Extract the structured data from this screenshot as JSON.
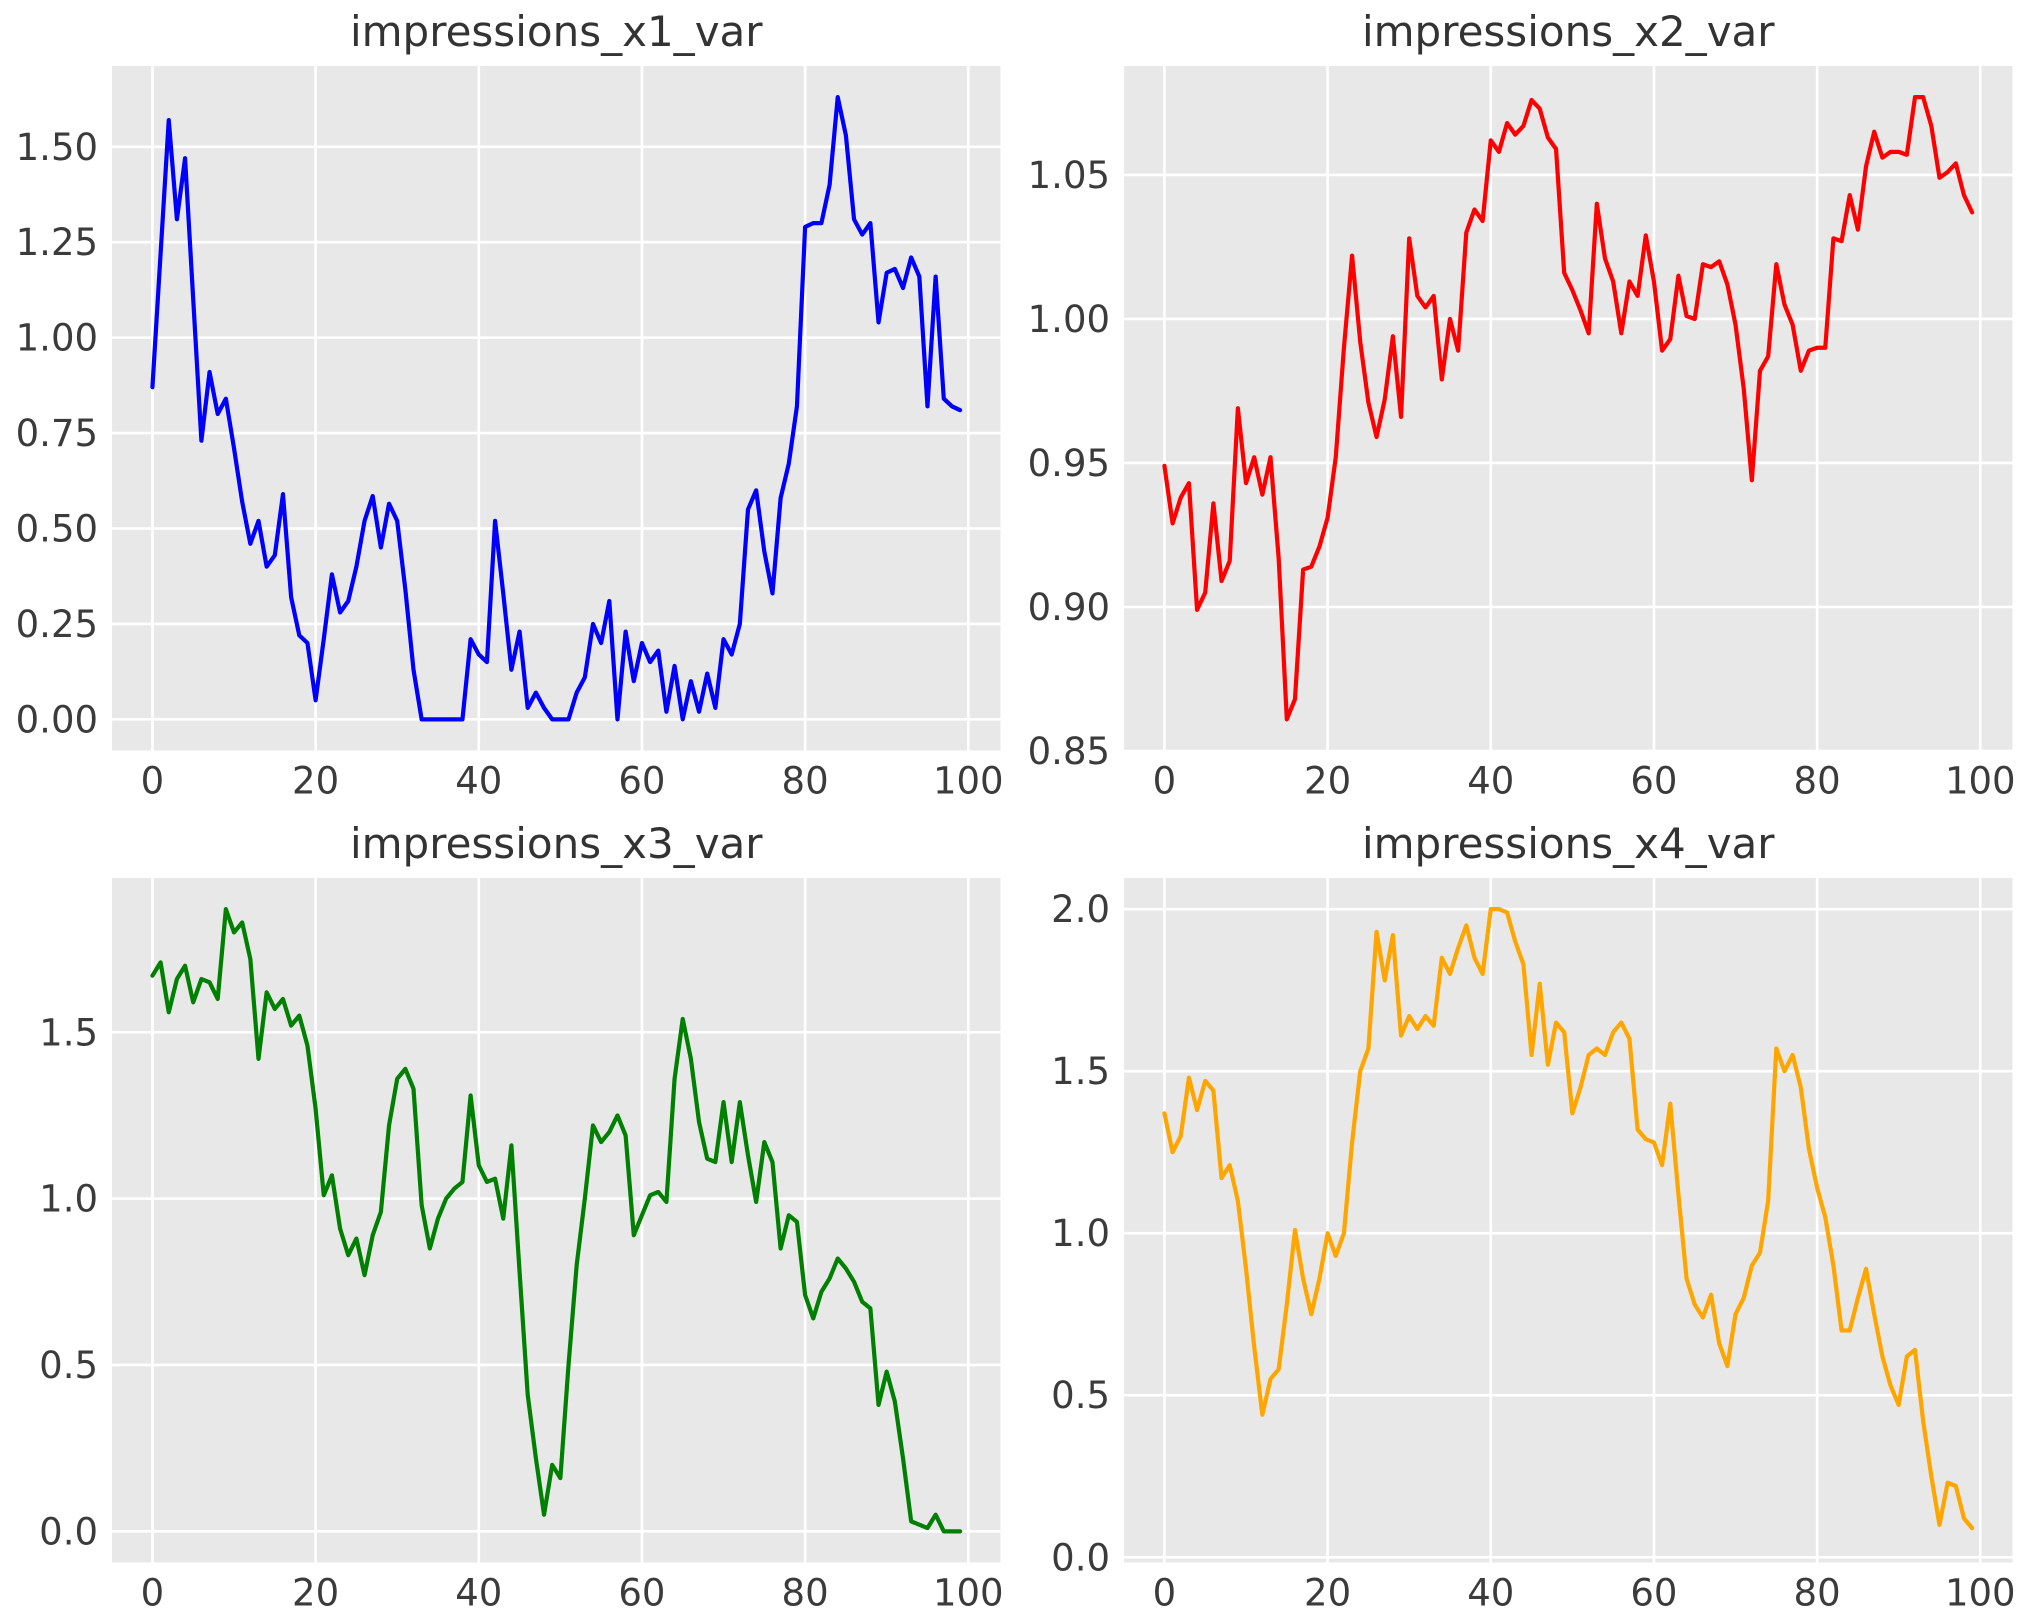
{
  "figure": {
    "background": "#ffffff",
    "plot_background": "#e8e8e8",
    "grid_color": "#ffffff",
    "tick_color": "#3b3b3b",
    "title_color": "#333333",
    "grid": true,
    "legend": "none"
  },
  "chart_data": [
    {
      "type": "line",
      "title": "impressions_x1_var",
      "line_color": "#0000ff",
      "x_start": 0,
      "x_step": 1,
      "xlim": [
        -4.95,
        103.95
      ],
      "ylim": [
        -0.0815,
        1.7115
      ],
      "x_ticks": [
        [
          0,
          "0"
        ],
        [
          20,
          "20"
        ],
        [
          40,
          "40"
        ],
        [
          60,
          "60"
        ],
        [
          80,
          "80"
        ],
        [
          100,
          "100"
        ]
      ],
      "y_ticks": [
        [
          0.0,
          "0.00"
        ],
        [
          0.25,
          "0.25"
        ],
        [
          0.5,
          "0.50"
        ],
        [
          0.75,
          "0.75"
        ],
        [
          1.0,
          "1.00"
        ],
        [
          1.25,
          "1.25"
        ],
        [
          1.5,
          "1.50"
        ]
      ],
      "values": [
        0.87,
        1.22,
        1.57,
        1.31,
        1.47,
        1.1,
        0.73,
        0.91,
        0.8,
        0.84,
        0.71,
        0.57,
        0.46,
        0.52,
        0.4,
        0.43,
        0.59,
        0.32,
        0.22,
        0.2,
        0.05,
        0.21,
        0.38,
        0.28,
        0.31,
        0.4,
        0.52,
        0.585,
        0.45,
        0.565,
        0.52,
        0.34,
        0.13,
        0.0,
        0.0,
        0.0,
        0.0,
        0.0,
        0.0,
        0.21,
        0.17,
        0.15,
        0.52,
        0.33,
        0.13,
        0.23,
        0.03,
        0.07,
        0.03,
        0.0,
        0.0,
        0.0,
        0.07,
        0.11,
        0.25,
        0.2,
        0.31,
        0.0,
        0.23,
        0.1,
        0.2,
        0.15,
        0.18,
        0.02,
        0.14,
        0.0,
        0.1,
        0.02,
        0.12,
        0.03,
        0.21,
        0.17,
        0.25,
        0.55,
        0.6,
        0.44,
        0.33,
        0.58,
        0.67,
        0.82,
        1.29,
        1.3,
        1.3,
        1.4,
        1.63,
        1.53,
        1.31,
        1.27,
        1.3,
        1.04,
        1.17,
        1.18,
        1.13,
        1.21,
        1.16,
        0.82,
        1.16,
        0.84,
        0.82,
        0.81
      ]
    },
    {
      "type": "line",
      "title": "impressions_x2_var",
      "line_color": "#ff0000",
      "x_start": 0,
      "x_step": 1,
      "xlim": [
        -4.95,
        103.95
      ],
      "ylim": [
        0.8502,
        1.0878
      ],
      "x_ticks": [
        [
          0,
          "0"
        ],
        [
          20,
          "20"
        ],
        [
          40,
          "40"
        ],
        [
          60,
          "60"
        ],
        [
          80,
          "80"
        ],
        [
          100,
          "100"
        ]
      ],
      "y_ticks": [
        [
          0.85,
          "0.85"
        ],
        [
          0.9,
          "0.90"
        ],
        [
          0.95,
          "0.95"
        ],
        [
          1.0,
          "1.00"
        ],
        [
          1.05,
          "1.05"
        ]
      ],
      "values": [
        0.949,
        0.929,
        0.938,
        0.943,
        0.899,
        0.905,
        0.936,
        0.909,
        0.916,
        0.969,
        0.943,
        0.952,
        0.939,
        0.952,
        0.917,
        0.861,
        0.868,
        0.913,
        0.914,
        0.921,
        0.931,
        0.952,
        0.99,
        1.022,
        0.992,
        0.971,
        0.959,
        0.972,
        0.994,
        0.966,
        1.028,
        1.008,
        1.004,
        1.008,
        0.979,
        1.0,
        0.989,
        1.03,
        1.038,
        1.034,
        1.062,
        1.058,
        1.068,
        1.064,
        1.067,
        1.076,
        1.073,
        1.063,
        1.059,
        1.016,
        1.01,
        1.003,
        0.995,
        1.04,
        1.021,
        1.013,
        0.995,
        1.013,
        1.008,
        1.029,
        1.013,
        0.989,
        0.993,
        1.015,
        1.001,
        1.0,
        1.019,
        1.018,
        1.02,
        1.012,
        0.998,
        0.976,
        0.944,
        0.982,
        0.987,
        1.019,
        1.005,
        0.998,
        0.982,
        0.989,
        0.99,
        0.99,
        1.028,
        1.027,
        1.043,
        1.031,
        1.053,
        1.065,
        1.056,
        1.058,
        1.058,
        1.057,
        1.077,
        1.077,
        1.067,
        1.049,
        1.051,
        1.054,
        1.043,
        1.037
      ]
    },
    {
      "type": "line",
      "title": "impressions_x3_var",
      "line_color": "#008000",
      "x_start": 0,
      "x_step": 1,
      "xlim": [
        -4.95,
        103.95
      ],
      "ylim": [
        -0.0935,
        1.9635
      ],
      "x_ticks": [
        [
          0,
          "0"
        ],
        [
          20,
          "20"
        ],
        [
          40,
          "40"
        ],
        [
          60,
          "60"
        ],
        [
          80,
          "80"
        ],
        [
          100,
          "100"
        ]
      ],
      "y_ticks": [
        [
          0.0,
          "0.0"
        ],
        [
          0.5,
          "0.5"
        ],
        [
          1.0,
          "1.0"
        ],
        [
          1.5,
          "1.5"
        ]
      ],
      "values": [
        1.67,
        1.71,
        1.56,
        1.66,
        1.7,
        1.59,
        1.66,
        1.65,
        1.6,
        1.87,
        1.8,
        1.83,
        1.72,
        1.42,
        1.62,
        1.57,
        1.6,
        1.52,
        1.55,
        1.46,
        1.27,
        1.01,
        1.07,
        0.91,
        0.83,
        0.88,
        0.77,
        0.89,
        0.96,
        1.22,
        1.36,
        1.39,
        1.33,
        0.98,
        0.85,
        0.94,
        1.0,
        1.03,
        1.05,
        1.31,
        1.1,
        1.05,
        1.06,
        0.94,
        1.16,
        0.78,
        0.41,
        0.22,
        0.05,
        0.2,
        0.16,
        0.5,
        0.8,
        1.0,
        1.22,
        1.17,
        1.2,
        1.25,
        1.19,
        0.89,
        0.95,
        1.01,
        1.02,
        0.99,
        1.36,
        1.54,
        1.42,
        1.23,
        1.12,
        1.11,
        1.29,
        1.11,
        1.29,
        1.13,
        0.99,
        1.17,
        1.11,
        0.85,
        0.95,
        0.93,
        0.71,
        0.64,
        0.72,
        0.76,
        0.82,
        0.79,
        0.75,
        0.69,
        0.67,
        0.38,
        0.48,
        0.39,
        0.22,
        0.03,
        0.02,
        0.01,
        0.05,
        0.0,
        0.0,
        0.0
      ]
    },
    {
      "type": "line",
      "title": "impressions_x4_var",
      "line_color": "#ffa500",
      "x_start": 0,
      "x_step": 1,
      "xlim": [
        -4.95,
        103.95
      ],
      "ylim": [
        -0.016,
        2.096
      ],
      "x_ticks": [
        [
          0,
          "0"
        ],
        [
          20,
          "20"
        ],
        [
          40,
          "40"
        ],
        [
          60,
          "60"
        ],
        [
          80,
          "80"
        ],
        [
          100,
          "100"
        ]
      ],
      "y_ticks": [
        [
          0.0,
          "0.0"
        ],
        [
          0.5,
          "0.5"
        ],
        [
          1.0,
          "1.0"
        ],
        [
          1.5,
          "1.5"
        ],
        [
          2.0,
          "2.0"
        ]
      ],
      "values": [
        1.37,
        1.25,
        1.3,
        1.48,
        1.38,
        1.47,
        1.44,
        1.17,
        1.21,
        1.1,
        0.89,
        0.65,
        0.44,
        0.55,
        0.58,
        0.78,
        1.01,
        0.86,
        0.75,
        0.86,
        1.0,
        0.93,
        1.0,
        1.28,
        1.5,
        1.57,
        1.93,
        1.78,
        1.92,
        1.61,
        1.67,
        1.63,
        1.67,
        1.64,
        1.85,
        1.8,
        1.88,
        1.95,
        1.85,
        1.8,
        2.0,
        2.0,
        1.99,
        1.9,
        1.83,
        1.55,
        1.77,
        1.52,
        1.65,
        1.62,
        1.37,
        1.45,
        1.55,
        1.57,
        1.55,
        1.62,
        1.65,
        1.6,
        1.32,
        1.29,
        1.28,
        1.21,
        1.4,
        1.12,
        0.86,
        0.78,
        0.74,
        0.81,
        0.66,
        0.59,
        0.75,
        0.8,
        0.9,
        0.94,
        1.1,
        1.57,
        1.5,
        1.55,
        1.45,
        1.26,
        1.14,
        1.05,
        0.9,
        0.7,
        0.7,
        0.8,
        0.89,
        0.75,
        0.62,
        0.53,
        0.47,
        0.62,
        0.64,
        0.42,
        0.25,
        0.1,
        0.23,
        0.22,
        0.12,
        0.09
      ]
    }
  ]
}
